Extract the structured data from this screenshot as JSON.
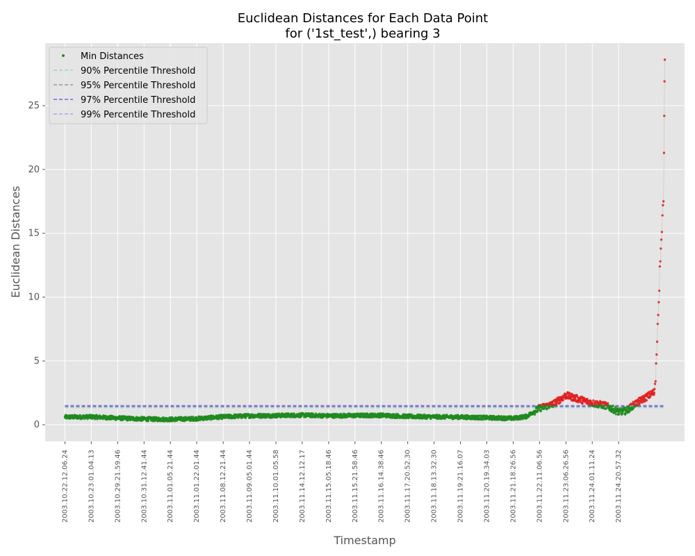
{
  "chart_data": {
    "type": "scatter",
    "title": [
      "Euclidean Distances for Each Data Point",
      "for ('1st_test',) bearing 3"
    ],
    "xlabel": "Timestamp",
    "ylabel": "Euclidean Distances",
    "ylim": [
      -1.3,
      29.9
    ],
    "yticks": [
      0,
      5,
      10,
      15,
      20,
      25
    ],
    "x_categories": [
      "2003.10.22.12.06.24",
      "2003.10.23.01.04.13",
      "2003.10.29.21.59.46",
      "2003.10.31.12.41.44",
      "2003.11.01.05.21.44",
      "2003.11.01.22.01.44",
      "2003.11.08.12.21.44",
      "2003.11.09.05.01.44",
      "2003.11.10.01.05.58",
      "2003.11.14.12.12.17",
      "2003.11.15.05.18.46",
      "2003.11.15.21.58.46",
      "2003.11.16.14.38.46",
      "2003.11.17.20.52.30",
      "2003.11.18.13.32.30",
      "2003.11.19.21.16.07",
      "2003.11.20.19.34.03",
      "2003.11.21.18.26.56",
      "2003.11.22.11.06.56",
      "2003.11.23.06.26.56",
      "2003.11.24.01.11.24",
      "2003.11.24.20.57.32"
    ],
    "tick_step": 100,
    "n_points": 2156,
    "thresholds": [
      {
        "name": "90% Percentile Threshold",
        "value": 1.33,
        "color": "#7fd3d8"
      },
      {
        "name": "95% Percentile Threshold",
        "value": 1.42,
        "color": "#8a8a8a"
      },
      {
        "name": "97% Percentile Threshold",
        "value": 1.47,
        "color": "#5a4fcf"
      },
      {
        "name": "99% Percentile Threshold",
        "value": 1.52,
        "color": "#b58cf0"
      }
    ],
    "series_legend": {
      "name": "Min Distances",
      "color": "#2a8a2a"
    },
    "normal_color": "#1f8a1f",
    "anomaly_color": "#e02020",
    "anomaly_threshold": 1.52,
    "profile_anchors": [
      [
        0,
        0.6
      ],
      [
        100,
        0.62
      ],
      [
        200,
        0.52
      ],
      [
        300,
        0.45
      ],
      [
        400,
        0.42
      ],
      [
        500,
        0.48
      ],
      [
        600,
        0.62
      ],
      [
        700,
        0.7
      ],
      [
        800,
        0.72
      ],
      [
        900,
        0.75
      ],
      [
        1000,
        0.7
      ],
      [
        1100,
        0.72
      ],
      [
        1200,
        0.74
      ],
      [
        1300,
        0.65
      ],
      [
        1400,
        0.62
      ],
      [
        1500,
        0.6
      ],
      [
        1600,
        0.55
      ],
      [
        1700,
        0.5
      ],
      [
        1750,
        0.65
      ],
      [
        1800,
        1.3
      ],
      [
        1850,
        1.6
      ],
      [
        1900,
        2.3
      ],
      [
        1950,
        2.0
      ],
      [
        2000,
        1.7
      ],
      [
        2050,
        1.5
      ],
      [
        2100,
        1.0
      ],
      [
        2130,
        1.1
      ],
      [
        2160,
        1.6
      ],
      [
        2200,
        2.1
      ],
      [
        2230,
        2.5
      ]
    ],
    "spike_points": [
      [
        2236,
        2.8
      ],
      [
        2238,
        3.2
      ],
      [
        2240,
        3.4
      ],
      [
        2242,
        4.8
      ],
      [
        2244,
        5.5
      ],
      [
        2246,
        6.5
      ],
      [
        2248,
        7.9
      ],
      [
        2250,
        8.6
      ],
      [
        2252,
        9.6
      ],
      [
        2254,
        10.5
      ],
      [
        2256,
        12.4
      ],
      [
        2258,
        12.8
      ],
      [
        2260,
        13.8
      ],
      [
        2262,
        14.5
      ],
      [
        2264,
        15.1
      ],
      [
        2266,
        16.4
      ],
      [
        2268,
        17.2
      ],
      [
        2270,
        17.5
      ],
      [
        2272,
        21.3
      ],
      [
        2273,
        24.2
      ],
      [
        2274,
        26.9
      ],
      [
        2275,
        28.6
      ]
    ]
  }
}
